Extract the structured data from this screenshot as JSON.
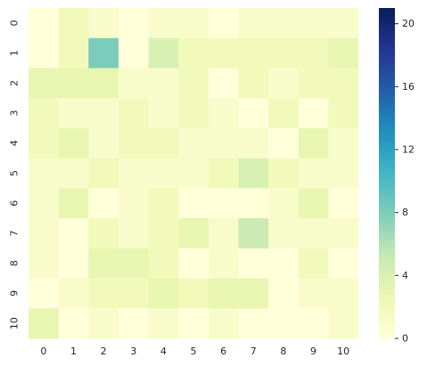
{
  "chart_data": {
    "type": "heatmap",
    "title": "",
    "xlabel": "",
    "ylabel": "",
    "x_labels": [
      "0",
      "1",
      "2",
      "3",
      "4",
      "5",
      "6",
      "7",
      "8",
      "9",
      "10"
    ],
    "y_labels": [
      "0",
      "1",
      "2",
      "3",
      "4",
      "5",
      "6",
      "7",
      "8",
      "9",
      "10"
    ],
    "values": [
      [
        0,
        2,
        1,
        0,
        1,
        1,
        0,
        1,
        1,
        1,
        1
      ],
      [
        0,
        2,
        8,
        0,
        4,
        2,
        2,
        2,
        2,
        2,
        3
      ],
      [
        3,
        3,
        3,
        1,
        1,
        2,
        0,
        2,
        1,
        2,
        2
      ],
      [
        2,
        1,
        1,
        2,
        1,
        2,
        1,
        0,
        2,
        0,
        2
      ],
      [
        2,
        3,
        1,
        2,
        2,
        1,
        1,
        1,
        0,
        3,
        1
      ],
      [
        1,
        1,
        2,
        1,
        1,
        1,
        2,
        4,
        2,
        1,
        1
      ],
      [
        1,
        3,
        0,
        1,
        2,
        0,
        0,
        0,
        1,
        3,
        0
      ],
      [
        1,
        0,
        2,
        1,
        2,
        3,
        1,
        5,
        1,
        1,
        1
      ],
      [
        1,
        0,
        3,
        3,
        2,
        0,
        1,
        0,
        0,
        2,
        0
      ],
      [
        0,
        1,
        2,
        2,
        3,
        2,
        3,
        3,
        0,
        1,
        1
      ],
      [
        3,
        0,
        1,
        0,
        1,
        0,
        1,
        0,
        0,
        0,
        1
      ]
    ],
    "vmin": 0,
    "vmax": 21,
    "colorbar": {
      "ticks": [
        0,
        4,
        8,
        12,
        16,
        20
      ],
      "tick_labels": [
        "0",
        "4",
        "8",
        "12",
        "16",
        "20"
      ]
    },
    "colormap": "YlGnBu",
    "grid": false,
    "legend": "colorbar-right"
  }
}
